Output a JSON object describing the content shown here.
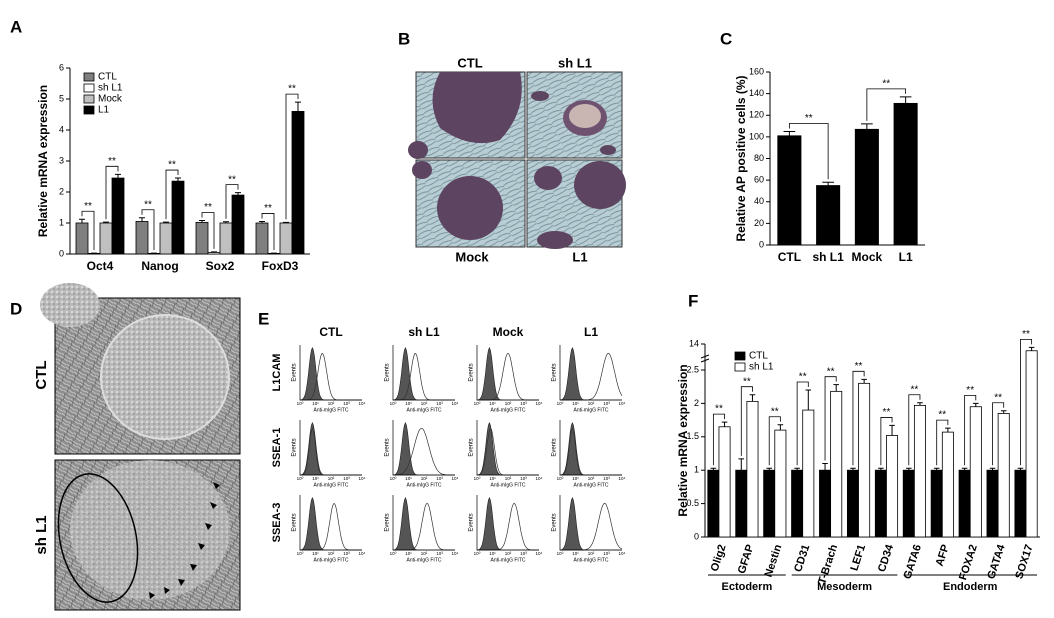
{
  "chart_data": [
    {
      "type": "bar",
      "panel_label": "A",
      "y_label": "Relative mRNA expression",
      "categories": [
        "Oct4",
        "Nanog",
        "Sox2",
        "FoxD3"
      ],
      "series": [
        {
          "name": "CTL",
          "color": "#7f7f7f",
          "values": [
            1.0,
            1.05,
            1.02,
            1.0
          ],
          "errors": [
            0.12,
            0.12,
            0.06,
            0.05
          ]
        },
        {
          "name": "sh L1",
          "color": "#ffffff",
          "values": [
            0.02,
            0.02,
            0.05,
            0.02
          ],
          "errors": [
            0.01,
            0.01,
            0.02,
            0.01
          ]
        },
        {
          "name": "Mock",
          "color": "#c0c0c0",
          "values": [
            1.0,
            1.0,
            1.0,
            1.0
          ],
          "errors": [
            0.03,
            0.03,
            0.04,
            0.02
          ]
        },
        {
          "name": "L1",
          "color": "#000000",
          "values": [
            2.45,
            2.35,
            1.9,
            4.6
          ],
          "errors": [
            0.12,
            0.1,
            0.08,
            0.3
          ]
        }
      ],
      "ylim": [
        0,
        6
      ],
      "yticks": [
        0,
        1,
        2,
        3,
        4,
        5,
        6
      ],
      "legend": "upper-left",
      "annotations": [
        "**",
        "**",
        "**",
        "**",
        "**",
        "**",
        "**",
        "**"
      ]
    },
    {
      "type": "bar",
      "panel_label": "C",
      "y_label": "Relative AP positive cells (%)",
      "categories": [
        "CTL",
        "sh L1",
        "Mock",
        "L1"
      ],
      "values": [
        101,
        55,
        107,
        131
      ],
      "errors": [
        4,
        3,
        5,
        6
      ],
      "color": "#000000",
      "ylim": [
        0,
        160
      ],
      "yticks": [
        0,
        20,
        40,
        60,
        80,
        100,
        120,
        140,
        160
      ],
      "annotations": [
        "**",
        "**"
      ]
    },
    {
      "type": "bar",
      "panel_label": "F",
      "y_label": "Relative mRNA expression",
      "groups": [
        {
          "label": "Ectoderm",
          "categories": [
            "Olig2",
            "GFAP",
            "Nestin"
          ]
        },
        {
          "label": "Mesoderm",
          "categories": [
            "CD31",
            "T-Brach",
            "LEF1",
            "CD34"
          ]
        },
        {
          "label": "Endoderm",
          "categories": [
            "GATA6",
            "AFP",
            "FOXA2",
            "GATA4",
            "SOX17"
          ]
        }
      ],
      "series": [
        {
          "name": "CTL",
          "color": "#000000",
          "values": [
            1,
            1,
            1,
            1,
            1,
            1,
            1,
            1,
            1,
            1,
            1,
            1
          ],
          "errors": [
            0.03,
            0.17,
            0.03,
            0.03,
            0.1,
            0.03,
            0.03,
            0.03,
            0.03,
            0.03,
            0.03,
            0.03
          ]
        },
        {
          "name": "sh L1",
          "color": "#ffffff",
          "values": [
            1.65,
            2.03,
            1.6,
            1.9,
            2.18,
            2.3,
            1.52,
            1.97,
            1.57,
            1.95,
            1.85,
            13
          ],
          "errors": [
            0.07,
            0.1,
            0.08,
            0.3,
            0.1,
            0.06,
            0.15,
            0.04,
            0.06,
            0.05,
            0.04,
            0.5
          ]
        }
      ],
      "ylim": [
        0,
        14
      ],
      "yticks": [
        0,
        0.5,
        1,
        1.5,
        2,
        2.5,
        14
      ],
      "axis_break": [
        2.6,
        12
      ],
      "legend": "upper-left",
      "annotations": [
        "**",
        "**",
        "**",
        "**",
        "**",
        "**",
        "**",
        "**",
        "**",
        "**",
        "**",
        "**"
      ]
    }
  ],
  "figure": {
    "B": {
      "panel_label": "B",
      "top_labels": [
        "CTL",
        "sh L1"
      ],
      "bottom_labels": [
        "Mock",
        "L1"
      ]
    },
    "D": {
      "panel_label": "D",
      "labels": [
        "CTL",
        "sh L1"
      ]
    },
    "E": {
      "panel_label": "E",
      "columns": [
        "CTL",
        "sh L1",
        "Mock",
        "L1"
      ],
      "rows": [
        "L1CAM",
        "SSEA-1",
        "SSEA-3"
      ],
      "y_label": "Events",
      "x_label": "Anti-mIgG FITC",
      "xtick_labels": [
        "10⁰",
        "10¹",
        "10²",
        "10³",
        "10⁴"
      ]
    }
  }
}
